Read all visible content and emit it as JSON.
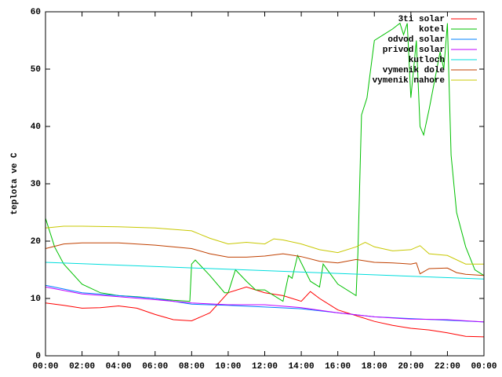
{
  "chart_data": {
    "type": "line",
    "ylabel": "teplota ve C",
    "xlim": [
      0,
      24
    ],
    "xticks": [
      {
        "value": 0,
        "label": "00:00"
      },
      {
        "value": 2,
        "label": "02:00"
      },
      {
        "value": 4,
        "label": "04:00"
      },
      {
        "value": 6,
        "label": "06:00"
      },
      {
        "value": 8,
        "label": "08:00"
      },
      {
        "value": 10,
        "label": "10:00"
      },
      {
        "value": 12,
        "label": "12:00"
      },
      {
        "value": 14,
        "label": "14:00"
      },
      {
        "value": 16,
        "label": "16:00"
      },
      {
        "value": 18,
        "label": "18:00"
      },
      {
        "value": 20,
        "label": "20:00"
      },
      {
        "value": 22,
        "label": "22:00"
      },
      {
        "value": 24,
        "label": "00:00"
      }
    ],
    "ylim": [
      0,
      60
    ],
    "yticks": [
      0,
      10,
      20,
      30,
      40,
      50,
      60
    ],
    "legend": "top-right",
    "series": [
      {
        "name": "3ti solar",
        "color": "#ff0000",
        "x": [
          0,
          1,
          2,
          3,
          4,
          5,
          6,
          7,
          8,
          9,
          10,
          11,
          12,
          13,
          14,
          14.5,
          15,
          16,
          17,
          18,
          19,
          20,
          21,
          22,
          23,
          24
        ],
        "values": [
          9.2,
          8.8,
          8.3,
          8.4,
          8.7,
          8.3,
          7.2,
          6.3,
          6.1,
          7.5,
          11,
          12,
          11,
          10.5,
          9.5,
          11.2,
          10,
          8,
          7,
          6,
          5.3,
          4.8,
          4.5,
          4,
          3.4,
          3.3
        ]
      },
      {
        "name": "kotel",
        "color": "#00c000",
        "x": [
          0,
          0.5,
          1,
          2,
          3,
          4,
          5,
          6,
          7,
          7.9,
          8,
          8.2,
          9,
          9.8,
          10,
          10.4,
          11,
          11.5,
          12,
          13,
          13.3,
          13.5,
          13.8,
          14.5,
          15,
          15.2,
          16,
          17,
          17.1,
          17.3,
          17.6,
          18,
          18.5,
          19,
          19.4,
          19.6,
          19.8,
          20,
          20.3,
          20.5,
          20.7,
          21,
          21.3,
          21.6,
          21.8,
          22,
          22.2,
          22.5,
          23,
          23.5,
          24
        ],
        "values": [
          24,
          19,
          16,
          12.5,
          11,
          10.5,
          10.3,
          10,
          9.7,
          9.5,
          16,
          16.7,
          14,
          11,
          11,
          15,
          13,
          11.5,
          11.5,
          9.5,
          14,
          13.5,
          17.5,
          13,
          12,
          16,
          12.5,
          10.5,
          18,
          42,
          45,
          55,
          56,
          57,
          58,
          56,
          58,
          45,
          55,
          40,
          38.5,
          43,
          48,
          53,
          50,
          58,
          35,
          25,
          19,
          15,
          14
        ]
      },
      {
        "name": "odvod solar",
        "color": "#0080ff",
        "x": [
          0,
          2,
          4,
          6,
          8,
          10,
          12,
          14,
          16,
          18,
          20,
          22,
          24
        ],
        "values": [
          12.3,
          11,
          10.5,
          10,
          9,
          8.8,
          8.5,
          8.2,
          7.5,
          6.8,
          6.5,
          6.2,
          5.9
        ]
      },
      {
        "name": "privod solar",
        "color": "#c000ff",
        "x": [
          0,
          2,
          4,
          6,
          8,
          10,
          12,
          14,
          16,
          18,
          20,
          22,
          24
        ],
        "values": [
          12,
          10.8,
          10.3,
          9.8,
          9.2,
          8.9,
          8.9,
          8.4,
          7.5,
          6.8,
          6.4,
          6.3,
          5.9
        ]
      },
      {
        "name": "kutloch",
        "color": "#00dddd",
        "x": [
          0,
          24
        ],
        "values": [
          16.3,
          13.4
        ]
      },
      {
        "name": "vymenik dole",
        "color": "#c04000",
        "x": [
          0,
          1,
          2,
          4,
          6,
          8,
          9,
          10,
          11,
          12,
          13,
          14,
          15,
          16,
          17,
          18,
          19,
          20,
          20.3,
          20.5,
          21,
          22,
          22.5,
          23,
          24
        ],
        "values": [
          18.7,
          19.5,
          19.7,
          19.7,
          19.3,
          18.7,
          17.8,
          17.2,
          17.2,
          17.4,
          17.8,
          17.3,
          16.5,
          16.2,
          16.8,
          16.3,
          16.2,
          16,
          16.2,
          14.3,
          15.2,
          15.3,
          14.5,
          14.2,
          14
        ]
      },
      {
        "name": "vymenik nahore",
        "color": "#c8c800",
        "x": [
          0,
          1,
          2,
          4,
          6,
          8,
          9,
          10,
          11,
          12,
          12.5,
          13,
          14,
          15,
          16,
          17,
          17.5,
          18,
          19,
          20,
          20.5,
          21,
          22,
          23,
          24
        ],
        "values": [
          22.3,
          22.6,
          22.6,
          22.5,
          22.3,
          21.8,
          20.5,
          19.5,
          19.8,
          19.5,
          20.4,
          20.2,
          19.5,
          18.5,
          18,
          19,
          19.8,
          19,
          18.3,
          18.5,
          19.2,
          17.8,
          17.5,
          16,
          16
        ]
      }
    ]
  }
}
